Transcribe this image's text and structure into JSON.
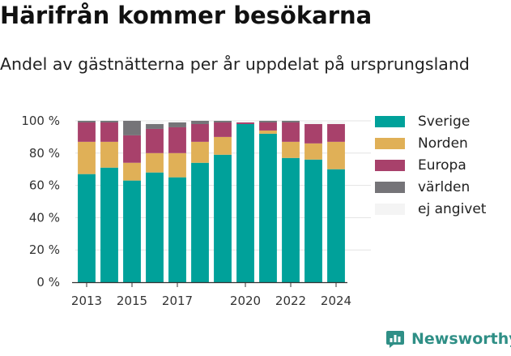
{
  "title": "Härifrån kommer besökarna",
  "subtitle": "Andel av gästnätterna per år uppdelat på ursprungsland",
  "brand": "Newsworthy",
  "colors": {
    "Sverige": "#00a19a",
    "Norden": "#e0b057",
    "Europa": "#a8416b",
    "världen": "#757478",
    "ej angivet": "#f4f4f4"
  },
  "legend": [
    "Sverige",
    "Norden",
    "Europa",
    "världen",
    "ej angivet"
  ],
  "chart_data": {
    "type": "bar",
    "stacked": true,
    "categories": [
      "2013",
      "2014",
      "2015",
      "2016",
      "2017",
      "2018",
      "2019",
      "2020",
      "2021",
      "2022",
      "2023",
      "2024"
    ],
    "series": [
      {
        "name": "Sverige",
        "values": [
          67,
          71,
          63,
          68,
          65,
          74,
          79,
          98,
          92,
          77,
          76,
          70
        ]
      },
      {
        "name": "Norden",
        "values": [
          20,
          16,
          11,
          12,
          15,
          13,
          11,
          0,
          2,
          10,
          10,
          17
        ]
      },
      {
        "name": "Europa",
        "values": [
          12,
          12,
          17,
          15,
          16,
          11,
          9,
          1,
          5,
          12,
          12,
          11
        ]
      },
      {
        "name": "världen",
        "values": [
          1,
          1,
          9,
          3,
          3,
          2,
          1,
          0,
          1,
          1,
          0,
          0
        ]
      },
      {
        "name": "ej angivet",
        "values": [
          0,
          0,
          0,
          2,
          1,
          0,
          0,
          1,
          0,
          0,
          2,
          2
        ]
      }
    ],
    "xtick_labels": [
      "2013",
      "2015",
      "2017",
      "2020",
      "2022",
      "2024"
    ],
    "ytick_labels": [
      "0 %",
      "20 %",
      "40 %",
      "60 %",
      "80 %",
      "100 %"
    ],
    "ylim": [
      0,
      100
    ],
    "grid": true,
    "legend_position": "right"
  }
}
